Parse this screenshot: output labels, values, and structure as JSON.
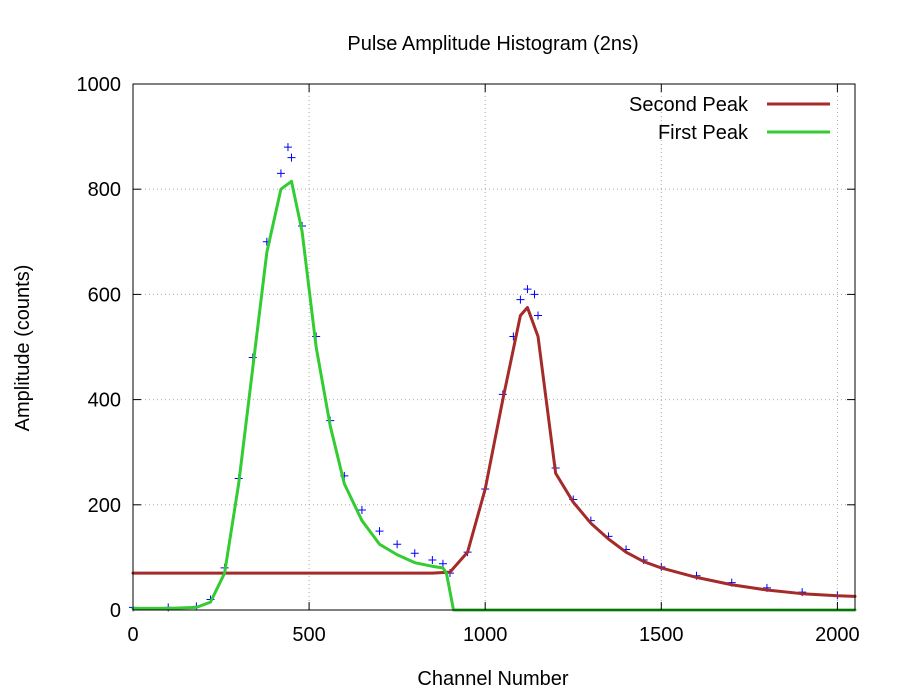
{
  "chart_data": {
    "type": "scatter",
    "title": "Pulse Amplitude Histogram (2ns)",
    "xlabel": "Channel Number",
    "ylabel": "Amplitude (counts)",
    "xlim": [
      0,
      2050
    ],
    "ylim": [
      0,
      1000
    ],
    "x_ticks": [
      0,
      500,
      1000,
      1500,
      2000
    ],
    "y_ticks": [
      0,
      200,
      400,
      600,
      800,
      1000
    ],
    "x_tick_labels": [
      "0",
      "500",
      "1000",
      "1500",
      "2000"
    ],
    "y_tick_labels": [
      "0",
      "200",
      "400",
      "600",
      "800",
      "1000"
    ],
    "grid": true,
    "legend_position": "top-right",
    "series": [
      {
        "type": "line",
        "name": "Second Peak",
        "color": "#a52a2a",
        "x": [
          0,
          200,
          400,
          600,
          800,
          850,
          900,
          950,
          1000,
          1050,
          1100,
          1120,
          1150,
          1200,
          1250,
          1300,
          1350,
          1400,
          1450,
          1500,
          1600,
          1700,
          1800,
          1900,
          2000,
          2050
        ],
        "y": [
          70,
          70,
          70,
          70,
          70,
          70,
          72,
          110,
          230,
          400,
          560,
          575,
          520,
          260,
          205,
          165,
          135,
          110,
          92,
          80,
          62,
          48,
          38,
          31,
          27,
          26
        ]
      },
      {
        "type": "line",
        "name": "First Peak",
        "color": "#33cc33",
        "x": [
          0,
          100,
          180,
          220,
          260,
          300,
          340,
          380,
          420,
          450,
          480,
          520,
          560,
          600,
          650,
          700,
          750,
          800,
          850,
          880,
          890,
          900,
          910,
          1000,
          1500,
          2000,
          2050
        ],
        "y": [
          3,
          3,
          5,
          15,
          70,
          240,
          460,
          680,
          800,
          815,
          720,
          500,
          350,
          240,
          170,
          125,
          105,
          90,
          83,
          80,
          70,
          35,
          0,
          0,
          0,
          0,
          0
        ]
      },
      {
        "type": "data",
        "color": "#0000ff",
        "x": [
          0,
          100,
          180,
          220,
          260,
          300,
          340,
          380,
          420,
          440,
          450,
          480,
          520,
          560,
          600,
          650,
          700,
          750,
          800,
          850,
          880,
          900,
          950,
          1000,
          1050,
          1080,
          1100,
          1120,
          1140,
          1150,
          1200,
          1250,
          1300,
          1350,
          1400,
          1450,
          1500,
          1600,
          1700,
          1800,
          1900,
          2000
        ],
        "y": [
          5,
          5,
          7,
          20,
          80,
          250,
          480,
          700,
          830,
          880,
          860,
          730,
          520,
          360,
          255,
          190,
          150,
          125,
          108,
          95,
          88,
          70,
          110,
          230,
          410,
          520,
          590,
          610,
          600,
          560,
          270,
          210,
          170,
          140,
          115,
          95,
          82,
          65,
          52,
          42,
          34,
          28
        ]
      }
    ]
  }
}
